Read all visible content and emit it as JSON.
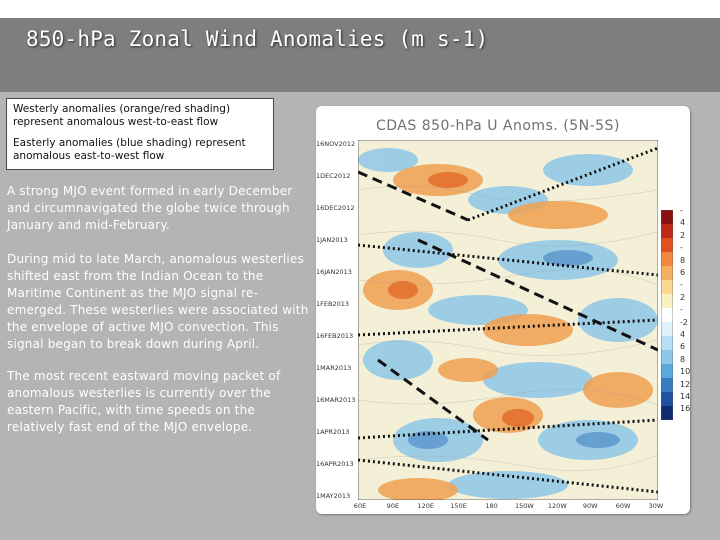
{
  "title": "850-hPa Zonal Wind Anomalies (m s-1)",
  "legend": {
    "westerly": "Westerly anomalies (orange/red shading) represent anomalous west-to-east flow",
    "easterly": "Easterly anomalies (blue shading) represent anomalous east-to-west flow"
  },
  "paragraphs": [
    "A strong MJO event formed in early December and circumnavigated the globe twice through January and mid-February.",
    "During mid to late March, anomalous westerlies shifted east from the Indian Ocean to the Maritime Continent as the MJO signal re-emerged. These westerlies were associated with the envelope of active MJO convection. This signal began to break down during April.",
    "The most recent eastward moving packet of anomalous westerlies is currently over the eastern Pacific, with time speeds on the relatively fast end of the MJO envelope."
  ],
  "plot": {
    "title": "CDAS 850-hPa U Anoms. (5N-5S)",
    "dates": [
      "16NOV2012",
      "1DEC2012",
      "16DEC2012",
      "1JAN2013",
      "16JAN2013",
      "1FEB2013",
      "16FEB2013",
      "1MAR2013",
      "16MAR2013",
      "1APR2013",
      "16APR2013",
      "1MAY2013"
    ],
    "longitudes": [
      "60E",
      "90E",
      "120E",
      "150E",
      "180",
      "150W",
      "120W",
      "90W",
      "60W",
      "30W"
    ],
    "colorbar_labels": [
      "-",
      "4",
      "2",
      "-",
      "8",
      "6",
      "-",
      "2",
      "-",
      "-2",
      "4",
      "6",
      "8",
      "10",
      "12",
      "14",
      "16"
    ],
    "colors": {
      "westerly": "#f0a050",
      "strong_westerly": "#e06020",
      "easterly": "#8ec8e8",
      "strong_easterly": "#3a7cc0",
      "neutral": "#f4f0d8"
    }
  }
}
